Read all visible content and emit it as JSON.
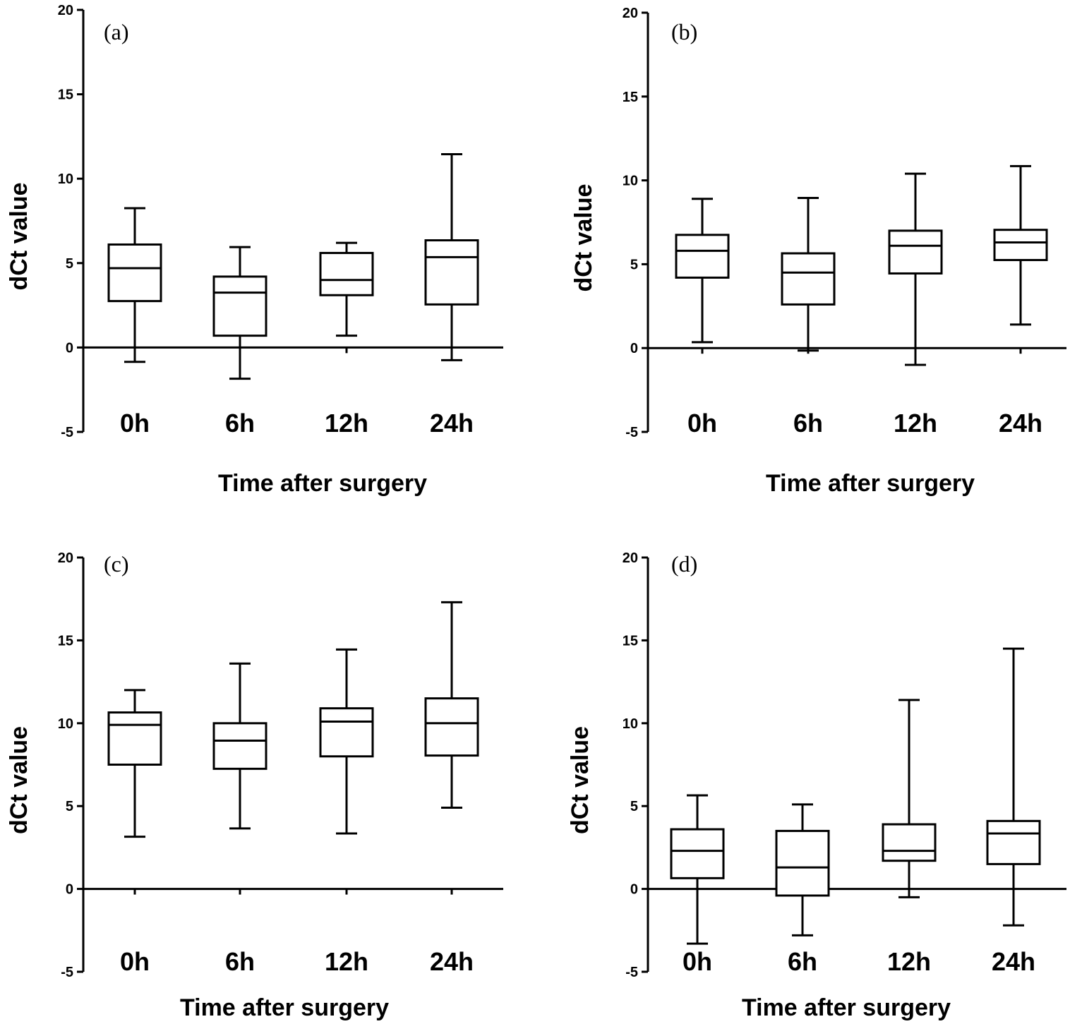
{
  "chart_data": [
    {
      "type": "box",
      "panel_label": "(a)",
      "ylabel": "dCt value",
      "xlabel": "Time after surgery",
      "ylim": [
        -5,
        20
      ],
      "yticks": [
        -5,
        0,
        5,
        10,
        15,
        20
      ],
      "categories": [
        "0h",
        "6h",
        "12h",
        "24h"
      ],
      "boxes": [
        {
          "min": -0.85,
          "q1": 2.75,
          "median": 4.7,
          "q3": 6.1,
          "max": 8.25
        },
        {
          "min": -1.85,
          "q1": 0.7,
          "median": 3.25,
          "q3": 4.2,
          "max": 5.95
        },
        {
          "min": 0.7,
          "q1": 3.1,
          "median": 4.0,
          "q3": 5.6,
          "max": 6.2
        },
        {
          "min": -0.75,
          "q1": 2.55,
          "median": 5.35,
          "q3": 6.35,
          "max": 11.45
        }
      ]
    },
    {
      "type": "box",
      "panel_label": "(b)",
      "ylabel": "dCt value",
      "xlabel": "Time after surgery",
      "ylim": [
        -5,
        20
      ],
      "yticks": [
        -5,
        0,
        5,
        10,
        15,
        20
      ],
      "categories": [
        "0h",
        "6h",
        "12h",
        "24h"
      ],
      "boxes": [
        {
          "min": 0.35,
          "q1": 4.2,
          "median": 5.8,
          "q3": 6.75,
          "max": 8.9
        },
        {
          "min": -0.15,
          "q1": 2.6,
          "median": 4.5,
          "q3": 5.65,
          "max": 8.95
        },
        {
          "min": -1.0,
          "q1": 4.45,
          "median": 6.1,
          "q3": 7.0,
          "max": 10.4
        },
        {
          "min": 1.4,
          "q1": 5.25,
          "median": 6.3,
          "q3": 7.05,
          "max": 10.85
        }
      ]
    },
    {
      "type": "box",
      "panel_label": "(c)",
      "ylabel": "dCt value",
      "xlabel": "Time after surgery",
      "ylim": [
        -5,
        20
      ],
      "yticks": [
        -5,
        0,
        5,
        10,
        15,
        20
      ],
      "categories": [
        "0h",
        "6h",
        "12h",
        "24h"
      ],
      "boxes": [
        {
          "min": 3.15,
          "q1": 7.5,
          "median": 9.9,
          "q3": 10.65,
          "max": 12.0
        },
        {
          "min": 3.65,
          "q1": 7.25,
          "median": 8.95,
          "q3": 10.0,
          "max": 13.6
        },
        {
          "min": 3.35,
          "q1": 8.0,
          "median": 10.1,
          "q3": 10.9,
          "max": 14.45
        },
        {
          "min": 4.9,
          "q1": 8.05,
          "median": 10.0,
          "q3": 11.5,
          "max": 17.3
        }
      ]
    },
    {
      "type": "box",
      "panel_label": "(d)",
      "ylabel": "dCt value",
      "xlabel": "Time after surgery",
      "ylim": [
        -5,
        20
      ],
      "yticks": [
        -5,
        0,
        5,
        10,
        15,
        20
      ],
      "categories": [
        "0h",
        "6h",
        "12h",
        "24h"
      ],
      "boxes": [
        {
          "min": -3.3,
          "q1": 0.65,
          "median": 2.3,
          "q3": 3.6,
          "max": 5.65
        },
        {
          "min": -2.8,
          "q1": -0.4,
          "median": 1.3,
          "q3": 3.5,
          "max": 5.1
        },
        {
          "min": -0.5,
          "q1": 1.7,
          "median": 2.3,
          "q3": 3.9,
          "max": 11.4
        },
        {
          "min": -2.2,
          "q1": 1.5,
          "median": 3.35,
          "q3": 4.1,
          "max": 14.5
        }
      ]
    }
  ]
}
